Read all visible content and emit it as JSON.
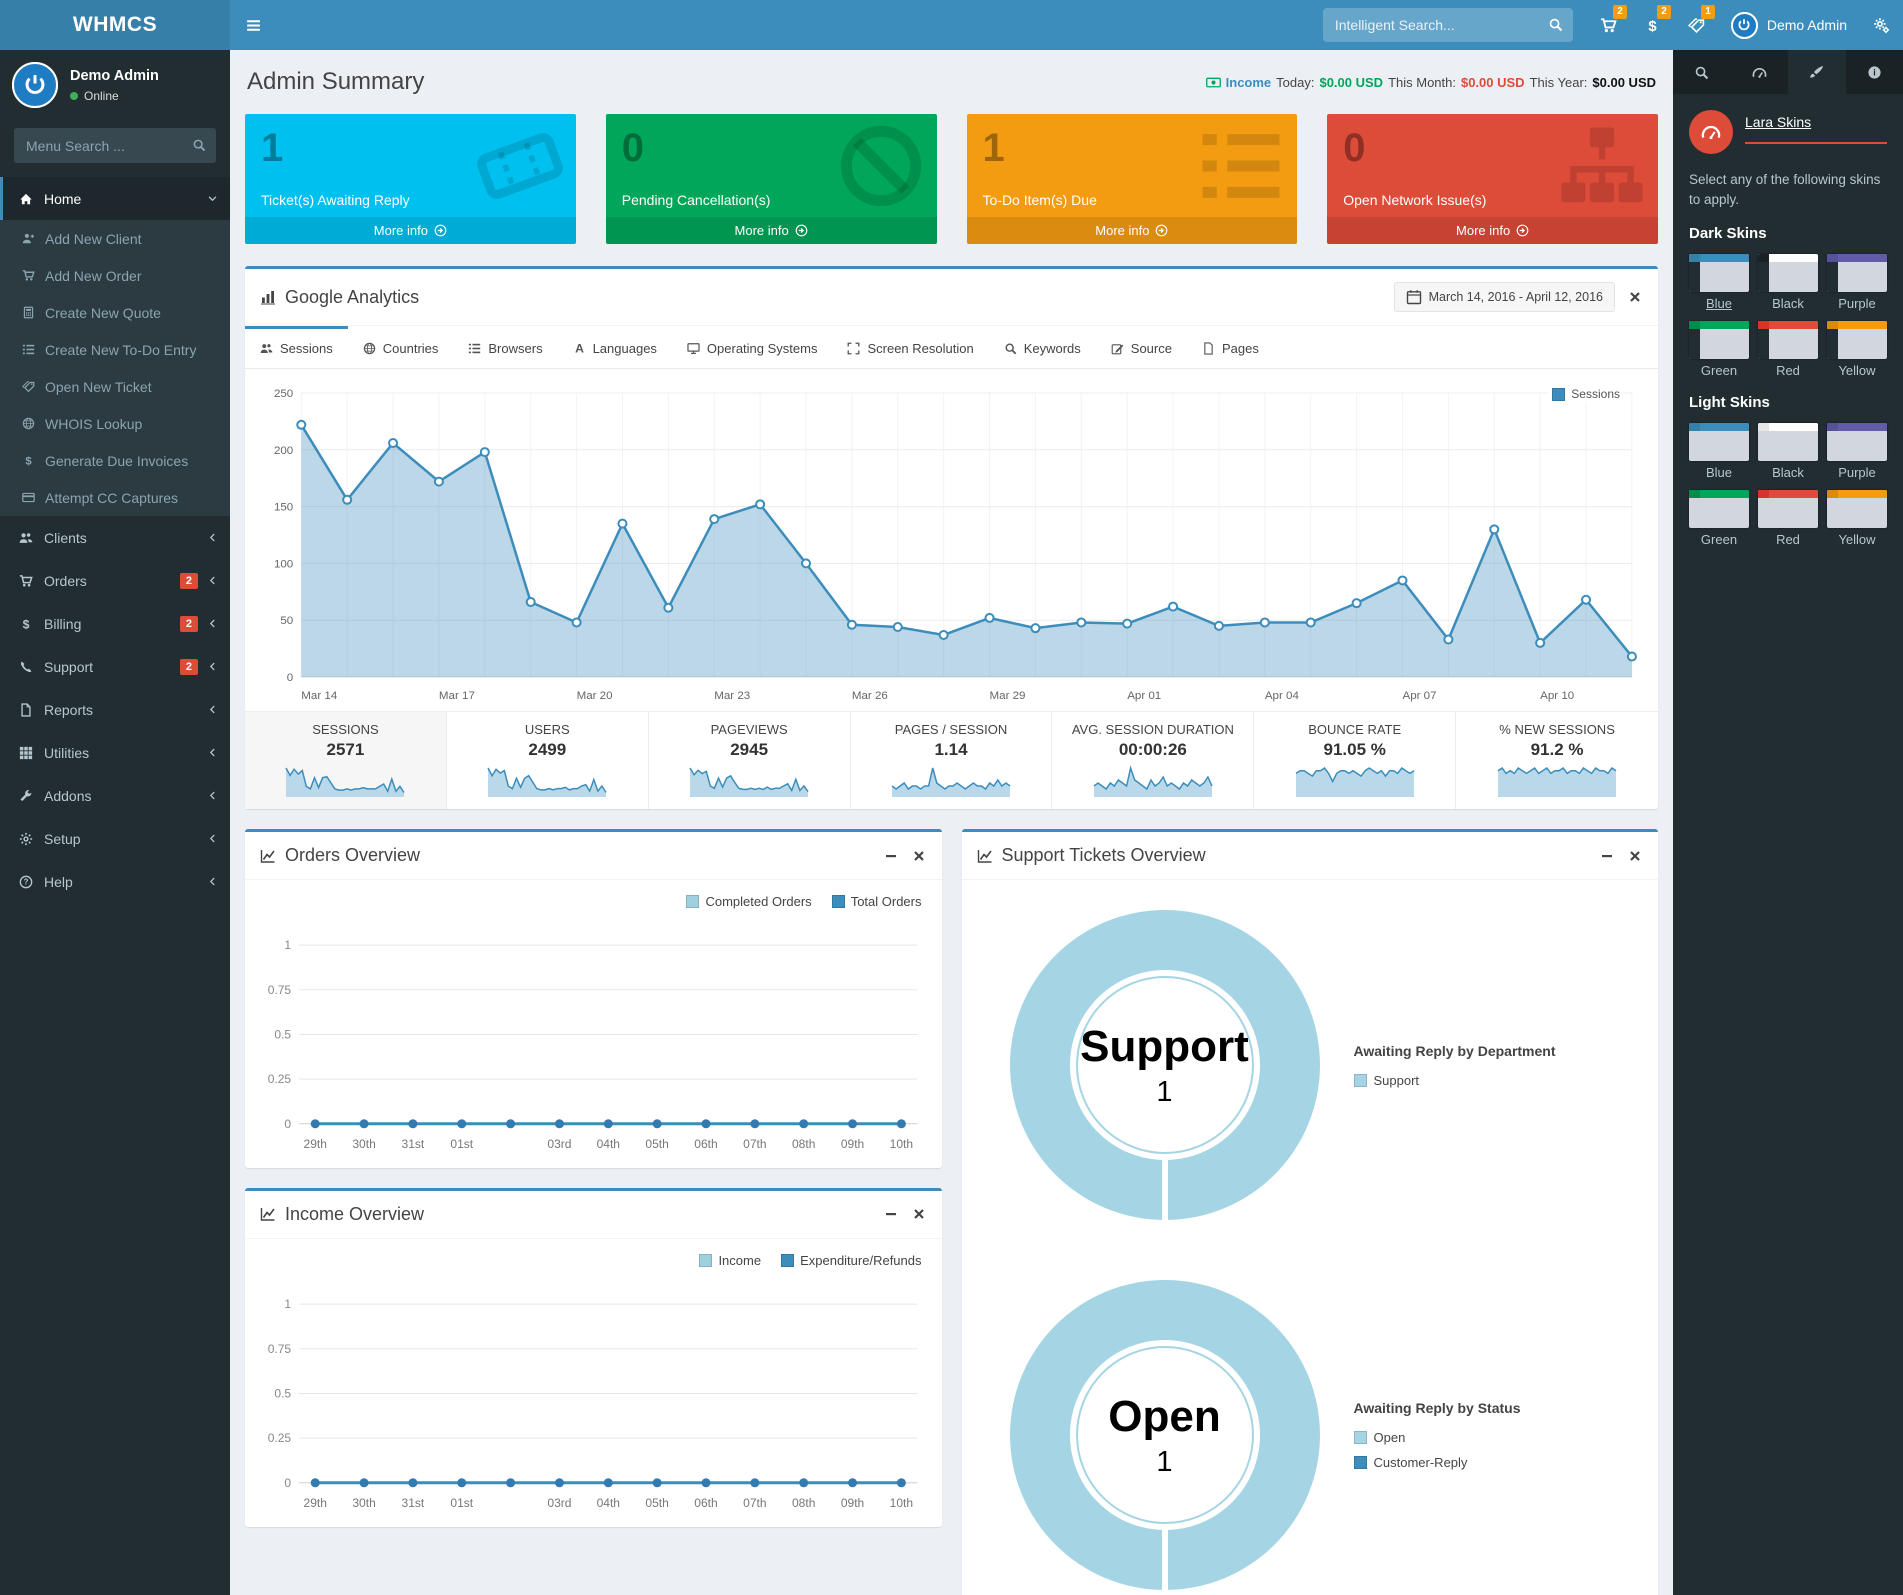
{
  "navbar": {
    "brand": "WHMCS",
    "search_placeholder": "Intelligent Search...",
    "cart_badge": "2",
    "billing_badge": "2",
    "ticket_badge": "1",
    "user_name": "Demo Admin"
  },
  "sidebar": {
    "user_name": "Demo Admin",
    "user_status": "Online",
    "search_placeholder": "Menu Search ...",
    "menu": [
      {
        "label": "Home",
        "icon": "home",
        "active": true,
        "expanded": true,
        "children": [
          {
            "label": "Add New Client",
            "icon": "user-plus"
          },
          {
            "label": "Add New Order",
            "icon": "cart"
          },
          {
            "label": "Create New Quote",
            "icon": "calculator"
          },
          {
            "label": "Create New To-Do Entry",
            "icon": "list-ol"
          },
          {
            "label": "Open New Ticket",
            "icon": "tags"
          },
          {
            "label": "WHOIS Lookup",
            "icon": "globe"
          },
          {
            "label": "Generate Due Invoices",
            "icon": "dollar"
          },
          {
            "label": "Attempt CC Captures",
            "icon": "credit-card"
          }
        ]
      },
      {
        "label": "Clients",
        "icon": "users"
      },
      {
        "label": "Orders",
        "icon": "cart",
        "badge": "2"
      },
      {
        "label": "Billing",
        "icon": "dollar",
        "badge": "2"
      },
      {
        "label": "Support",
        "icon": "phone",
        "badge": "2"
      },
      {
        "label": "Reports",
        "icon": "file"
      },
      {
        "label": "Utilities",
        "icon": "th"
      },
      {
        "label": "Addons",
        "icon": "wrench"
      },
      {
        "label": "Setup",
        "icon": "gear"
      },
      {
        "label": "Help",
        "icon": "question"
      }
    ]
  },
  "header": {
    "title": "Admin Summary",
    "income_label": "Income",
    "today_label": "Today:",
    "today_value": "$0.00 USD",
    "month_label": "This Month:",
    "month_value": "$0.00 USD",
    "year_label": "This Year:",
    "year_value": "$0.00 USD"
  },
  "info_boxes": [
    {
      "count": "1",
      "label": "Ticket(s) Awaiting Reply",
      "more": "More info",
      "color": "#00c0ef",
      "icon": "ticket"
    },
    {
      "count": "0",
      "label": "Pending Cancellation(s)",
      "more": "More info",
      "color": "#00a65a",
      "icon": "ban"
    },
    {
      "count": "1",
      "label": "To-Do Item(s) Due",
      "more": "More info",
      "color": "#f39c12",
      "icon": "list-ol"
    },
    {
      "count": "0",
      "label": "Open Network Issue(s)",
      "more": "More info",
      "color": "#dd4b39",
      "icon": "sitemap"
    }
  ],
  "analytics": {
    "title": "Google Analytics",
    "date_range": "March 14, 2016 - April 12, 2016",
    "tabs": [
      {
        "label": "Sessions",
        "icon": "users",
        "active": true
      },
      {
        "label": "Countries",
        "icon": "globe"
      },
      {
        "label": "Browsers",
        "icon": "list-ol"
      },
      {
        "label": "Languages",
        "icon": "font"
      },
      {
        "label": "Operating Systems",
        "icon": "monitor"
      },
      {
        "label": "Screen Resolution",
        "icon": "arrows"
      },
      {
        "label": "Keywords",
        "icon": "search"
      },
      {
        "label": "Source",
        "icon": "pencil-square"
      },
      {
        "label": "Pages",
        "icon": "page"
      }
    ],
    "stats": [
      {
        "label": "SESSIONS",
        "value": "2571",
        "active": true,
        "spark": [
          22,
          16,
          21,
          17,
          20,
          7,
          5,
          14,
          6,
          14,
          15,
          10,
          5,
          4,
          4,
          5,
          4,
          5,
          5,
          6,
          5,
          5,
          5,
          7,
          9,
          3,
          13,
          3,
          7,
          2
        ]
      },
      {
        "label": "USERS",
        "value": "2499",
        "spark": [
          21,
          15,
          20,
          17,
          19,
          7,
          5,
          13,
          6,
          13,
          15,
          10,
          5,
          4,
          4,
          5,
          4,
          5,
          5,
          6,
          4,
          5,
          5,
          7,
          8,
          3,
          12,
          3,
          7,
          2
        ]
      },
      {
        "label": "PAGEVIEWS",
        "value": "2945",
        "spark": [
          24,
          18,
          22,
          19,
          21,
          8,
          6,
          15,
          7,
          15,
          17,
          11,
          6,
          5,
          5,
          6,
          5,
          6,
          5,
          7,
          5,
          6,
          6,
          8,
          10,
          4,
          14,
          4,
          8,
          3
        ]
      },
      {
        "label": "PAGES / SESSION",
        "value": "1.14",
        "spark": [
          3,
          2,
          3,
          4,
          2,
          3,
          3,
          2,
          3,
          3,
          9,
          4,
          3,
          2,
          3,
          3,
          4,
          3,
          2,
          3,
          4,
          3,
          3,
          2,
          4,
          3,
          5,
          3,
          4,
          3
        ]
      },
      {
        "label": "AVG. SESSION DURATION",
        "value": "00:00:26",
        "spark": [
          3,
          4,
          3,
          2,
          4,
          3,
          5,
          4,
          3,
          9,
          5,
          4,
          3,
          2,
          5,
          3,
          4,
          6,
          3,
          4,
          3,
          2,
          4,
          3,
          5,
          4,
          3,
          4,
          6,
          3
        ]
      },
      {
        "label": "BOUNCE RATE",
        "value": "91.05 %",
        "spark": [
          8,
          9,
          9,
          8,
          7,
          9,
          9,
          10,
          8,
          5,
          8,
          9,
          9,
          8,
          9,
          8,
          7,
          9,
          10,
          9,
          8,
          9,
          7,
          9,
          9,
          8,
          10,
          9,
          8,
          9
        ]
      },
      {
        "label": "% NEW SESSIONS",
        "value": "91.2 %",
        "spark": [
          9,
          10,
          8,
          9,
          8,
          10,
          9,
          8,
          9,
          10,
          8,
          9,
          10,
          8,
          9,
          9,
          10,
          8,
          9,
          9,
          8,
          10,
          9,
          8,
          10,
          9,
          9,
          8,
          10,
          9
        ]
      }
    ]
  },
  "orders_panel": {
    "title": "Orders Overview"
  },
  "income_panel": {
    "title": "Income Overview"
  },
  "support_panel": {
    "title": "Support Tickets Overview"
  },
  "control_sidebar": {
    "title": "Lara Skins",
    "description": "Select any of the following skins to apply.",
    "sections": [
      {
        "title": "Dark Skins",
        "dark": true,
        "skins": [
          {
            "name": "Blue",
            "bar": "#3c8dbc",
            "corner": "#367fa9",
            "active": true
          },
          {
            "name": "Black",
            "bar": "#fefefe",
            "corner": "#1a2226"
          },
          {
            "name": "Purple",
            "bar": "#605ca8",
            "corner": "#555299"
          },
          {
            "name": "Green",
            "bar": "#00a65a",
            "corner": "#008d4c"
          },
          {
            "name": "Red",
            "bar": "#dd4b39",
            "corner": "#d33724"
          },
          {
            "name": "Yellow",
            "bar": "#f39c12",
            "corner": "#db8b0b"
          }
        ]
      },
      {
        "title": "Light Skins",
        "dark": false,
        "skins": [
          {
            "name": "Blue",
            "bar": "#3c8dbc",
            "corner": "#367fa9"
          },
          {
            "name": "Black",
            "bar": "#fefefe",
            "corner": "#e7e7e7"
          },
          {
            "name": "Purple",
            "bar": "#605ca8",
            "corner": "#555299"
          },
          {
            "name": "Green",
            "bar": "#00a65a",
            "corner": "#008d4c"
          },
          {
            "name": "Red",
            "bar": "#dd4b39",
            "corner": "#d33724"
          },
          {
            "name": "Yellow",
            "bar": "#f39c12",
            "corner": "#db8b0b"
          }
        ]
      }
    ]
  },
  "chart_data": [
    {
      "id": "sessions",
      "type": "area",
      "title": "Sessions",
      "legend": [
        "Sessions"
      ],
      "legend_position": "top-right",
      "color": "#3c8dbc",
      "x_tick_labels": [
        "Mar 14",
        "Mar 17",
        "Mar 20",
        "Mar 23",
        "Mar 26",
        "Mar 29",
        "Apr 01",
        "Apr 04",
        "Apr 07",
        "Apr 10"
      ],
      "tick_every": 3,
      "values": [
        222,
        156,
        206,
        172,
        198,
        66,
        48,
        135,
        61,
        139,
        152,
        100,
        46,
        44,
        37,
        52,
        43,
        48,
        47,
        62,
        45,
        48,
        48,
        65,
        85,
        33,
        130,
        30,
        68,
        18
      ],
      "ylim": [
        0,
        250
      ],
      "yticks": [
        0,
        50,
        100,
        150,
        200,
        250
      ],
      "grid": true
    },
    {
      "id": "orders_overview",
      "type": "line",
      "title": "Orders Overview",
      "categories": [
        "29th",
        "30th",
        "31st",
        "01st",
        "",
        "03rd",
        "04th",
        "05th",
        "06th",
        "07th",
        "08th",
        "09th",
        "10th"
      ],
      "series": [
        {
          "name": "Completed Orders",
          "color": "#9fd0e0",
          "values": [
            0,
            0,
            0,
            0,
            0,
            0,
            0,
            0,
            0,
            0,
            0,
            0,
            0
          ]
        },
        {
          "name": "Total Orders",
          "color": "#3c8dbc",
          "values": [
            0,
            0,
            0,
            0,
            0,
            0,
            0,
            0,
            0,
            0,
            0,
            0,
            0
          ]
        }
      ],
      "ylim": [
        0,
        1
      ],
      "yticks": [
        1,
        0.75,
        0.5,
        0.25,
        0
      ],
      "legend_position": "top-right"
    },
    {
      "id": "support_tickets_overview",
      "type": "pie",
      "title": "Support Tickets Overview",
      "donuts": [
        {
          "center_label": "Support",
          "center_value": "1",
          "legend_title": "Awaiting Reply by Department",
          "slices": [
            {
              "label": "Support",
              "value": 1,
              "color": "#a5d5e4"
            }
          ]
        },
        {
          "center_label": "Open",
          "center_value": "1",
          "legend_title": "Awaiting Reply by Status",
          "slices": [
            {
              "label": "Open",
              "value": 1,
              "color": "#a5d5e4"
            },
            {
              "label": "Customer-Reply",
              "value": 0,
              "color": "#3c8dbc"
            }
          ]
        }
      ]
    },
    {
      "id": "income_overview",
      "type": "line",
      "title": "Income Overview",
      "categories": [
        "29th",
        "30th",
        "31st",
        "01st",
        "",
        "03rd",
        "04th",
        "05th",
        "06th",
        "07th",
        "08th",
        "09th",
        "10th"
      ],
      "series": [
        {
          "name": "Income",
          "color": "#9fd0e0",
          "values": [
            0,
            0,
            0,
            0,
            0,
            0,
            0,
            0,
            0,
            0,
            0,
            0,
            0
          ]
        },
        {
          "name": "Expenditure/Refunds",
          "color": "#3c8dbc",
          "values": [
            0,
            0,
            0,
            0,
            0,
            0,
            0,
            0,
            0,
            0,
            0,
            0,
            0
          ]
        }
      ],
      "ylim": [
        0,
        1
      ],
      "yticks": [
        1,
        0.75,
        0.5,
        0.25,
        0
      ],
      "legend_position": "top-right"
    }
  ]
}
